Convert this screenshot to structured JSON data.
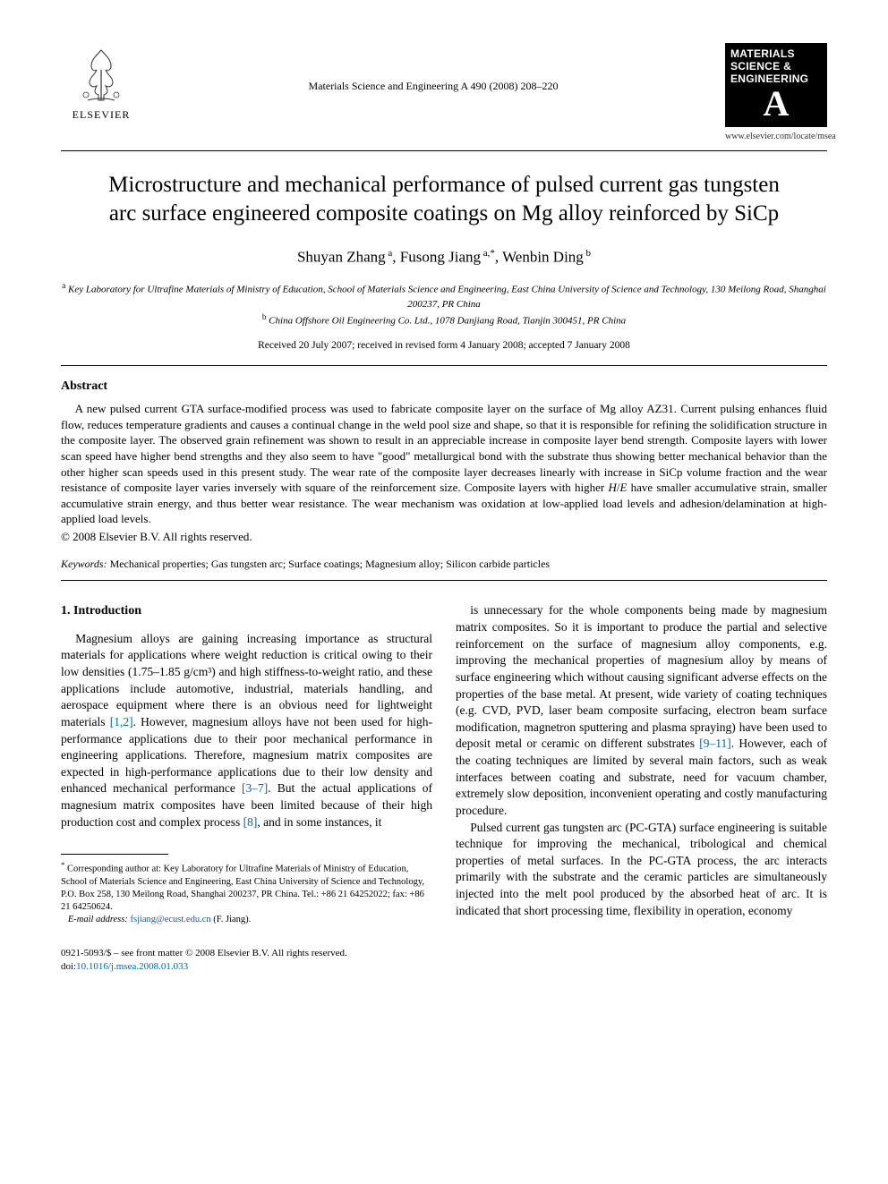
{
  "header": {
    "publisher_name": "ELSEVIER",
    "journal_ref": "Materials Science and Engineering A 490 (2008) 208–220",
    "journal_logo_line1": "MATERIALS",
    "journal_logo_line2": "SCIENCE &",
    "journal_logo_line3": "ENGINEERING",
    "journal_logo_letter": "A",
    "journal_url": "www.elsevier.com/locate/msea"
  },
  "title": "Microstructure and mechanical performance of pulsed current gas tungsten arc surface engineered composite coatings on Mg alloy reinforced by SiCp",
  "authors_html": "Shuyan Zhang<sup> a</sup>, Fusong Jiang<sup> a,</sup><sup>*</sup>, Wenbin Ding<sup> b</sup>",
  "affiliations": {
    "a": "Key Laboratory for Ultrafine Materials of Ministry of Education, School of Materials Science and Engineering, East China University of Science and Technology, 130 Meilong Road, Shanghai 200237, PR China",
    "b": "China Offshore Oil Engineering Co. Ltd., 1078 Danjiang Road, Tianjin 300451, PR China"
  },
  "dates": "Received 20 July 2007; received in revised form 4 January 2008; accepted 7 January 2008",
  "abstract": {
    "heading": "Abstract",
    "body": "A new pulsed current GTA surface-modified process was used to fabricate composite layer on the surface of Mg alloy AZ31. Current pulsing enhances fluid flow, reduces temperature gradients and causes a continual change in the weld pool size and shape, so that it is responsible for refining the solidification structure in the composite layer. The observed grain refinement was shown to result in an appreciable increase in composite layer bend strength. Composite layers with lower scan speed have higher bend strengths and they also seem to have \"good\" metallurgical bond with the substrate thus showing better mechanical behavior than the other higher scan speeds used in this present study. The wear rate of the composite layer decreases linearly with increase in SiCp volume fraction and the wear resistance of composite layer varies inversely with square of the reinforcement size. Composite layers with higher H/E have smaller accumulative strain, smaller accumulative strain energy, and thus better wear resistance. The wear mechanism was oxidation at low-applied load levels and adhesion/delamination at high-applied load levels.",
    "copyright": "© 2008 Elsevier B.V. All rights reserved."
  },
  "keywords": {
    "label": "Keywords:",
    "text": "Mechanical properties; Gas tungsten arc; Surface coatings; Magnesium alloy; Silicon carbide particles"
  },
  "section1": {
    "heading": "1.  Introduction",
    "col_left": "Magnesium alloys are gaining increasing importance as structural materials for applications where weight reduction is critical owing to their low densities (1.75–1.85 g/cm³) and high stiffness-to-weight ratio, and these applications include automotive, industrial, materials handling, and aerospace equipment where there is an obvious need for lightweight materials [1,2]. However, magnesium alloys have not been used for high-performance applications due to their poor mechanical performance in engineering applications. Therefore, magnesium matrix composites are expected in high-performance applications due to their low density and enhanced mechanical performance [3–7]. But the actual applications of magnesium matrix composites have been limited because of their high production cost and complex process [8], and in some instances, it",
    "col_right_p1": "is unnecessary for the whole components being made by magnesium matrix composites. So it is important to produce the partial and selective reinforcement on the surface of magnesium alloy components, e.g. improving the mechanical properties of magnesium alloy by means of surface engineering which without causing significant adverse effects on the properties of the base metal. At present, wide variety of coating techniques (e.g. CVD, PVD, laser beam composite surfacing, electron beam surface modification, magnetron sputtering and plasma spraying) have been used to deposit metal or ceramic on different substrates [9–11]. However, each of the coating techniques are limited by several main factors, such as weak interfaces between coating and substrate, need for vacuum chamber, extremely slow deposition, inconvenient operating and costly manufacturing procedure.",
    "col_right_p2": "Pulsed current gas tungsten arc (PC-GTA) surface engineering is suitable technique for improving the mechanical, tribological and chemical properties of metal surfaces. In the PC-GTA process, the arc interacts primarily with the substrate and the ceramic particles are simultaneously injected into the melt pool produced by the absorbed heat of arc. It is indicated that short processing time, flexibility in operation, economy"
  },
  "refs": {
    "r1": "[1,2]",
    "r2": "[3–7]",
    "r3": "[8]",
    "r4": "[9–11]"
  },
  "footnote": {
    "corr": "Corresponding author at: Key Laboratory for Ultrafine Materials of Ministry of Education, School of Materials Science and Engineering, East China University of Science and Technology, P.O. Box 258, 130 Meilong Road, Shanghai 200237, PR China. Tel.: +86 21 64252022; fax: +86 21 64250624.",
    "email_label": "E-mail address:",
    "email": "fsjiang@ecust.edu.cn",
    "email_who": "(F. Jiang)."
  },
  "footer": {
    "line1": "0921-5093/$ – see front matter © 2008 Elsevier B.V. All rights reserved.",
    "doi_label": "doi:",
    "doi": "10.1016/j.msea.2008.01.033"
  },
  "colors": {
    "link": "#0066aa",
    "text": "#000000",
    "bg": "#ffffff"
  }
}
